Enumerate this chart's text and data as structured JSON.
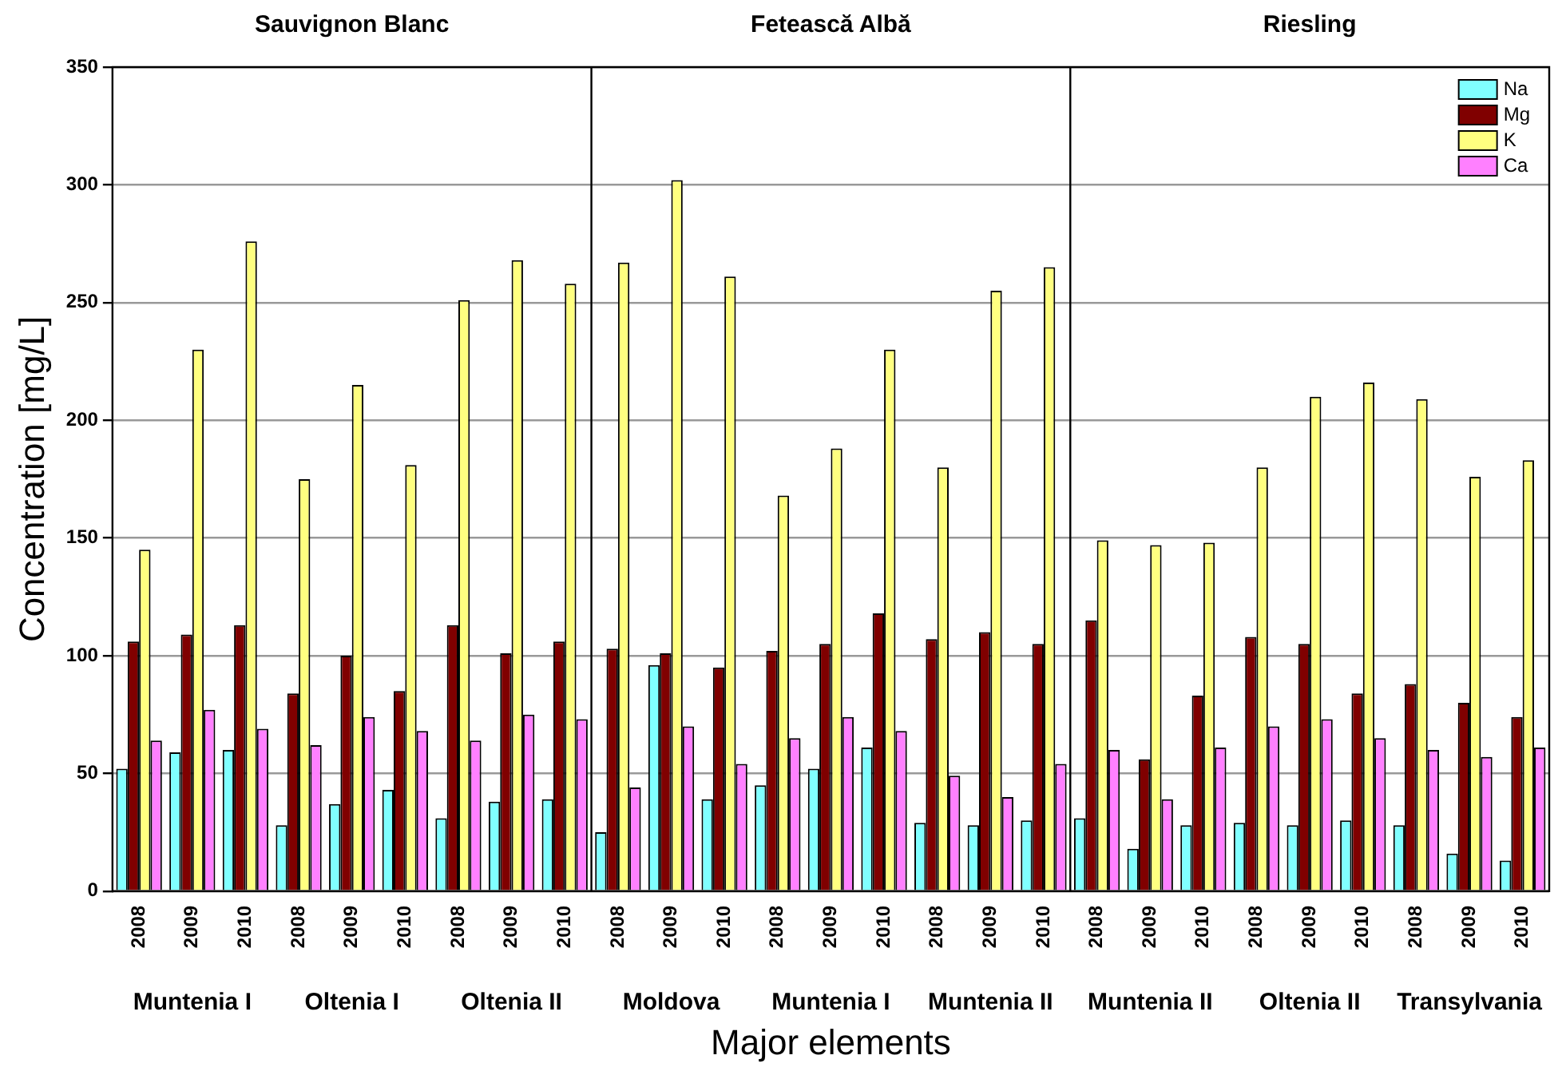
{
  "chart_data": {
    "type": "bar",
    "xlabel": "Major elements",
    "ylabel": "Concentration [mg/L]",
    "categories": [
      "2008",
      "2009",
      "2010",
      "2008",
      "2009",
      "2010",
      "2008",
      "2009",
      "2010",
      "2008",
      "2009",
      "2010",
      "2008",
      "2009",
      "2010",
      "2008",
      "2009",
      "2010",
      "2008",
      "2009",
      "2010",
      "2008",
      "2009",
      "2010",
      "2008",
      "2009",
      "2010"
    ],
    "series": [
      {
        "name": "Na",
        "color": "#80ffff",
        "values": [
          52,
          59,
          60,
          28,
          37,
          43,
          31,
          38,
          39,
          25,
          96,
          39,
          45,
          52,
          61,
          29,
          28,
          30,
          31,
          18,
          28,
          29,
          28,
          30,
          28,
          16,
          13
        ]
      },
      {
        "name": "Mg",
        "color": "#800000",
        "values": [
          106,
          109,
          113,
          84,
          100,
          85,
          113,
          101,
          106,
          103,
          101,
          95,
          102,
          105,
          118,
          107,
          110,
          105,
          115,
          56,
          83,
          108,
          105,
          84,
          88,
          80,
          74
        ]
      },
      {
        "name": "K",
        "color": "#ffff80",
        "values": [
          145,
          230,
          276,
          175,
          215,
          181,
          251,
          268,
          258,
          267,
          302,
          261,
          168,
          188,
          230,
          180,
          255,
          265,
          149,
          147,
          148,
          180,
          210,
          216,
          209,
          176,
          183
        ]
      },
      {
        "name": "Ca",
        "color": "#ff80ff",
        "values": [
          64,
          77,
          69,
          62,
          74,
          68,
          64,
          75,
          73,
          44,
          70,
          54,
          65,
          74,
          68,
          49,
          40,
          54,
          60,
          39,
          61,
          70,
          73,
          65,
          60,
          57,
          61
        ]
      }
    ],
    "ylim": [
      0,
      350
    ],
    "yticks": [
      0,
      50,
      100,
      150,
      200,
      250,
      300,
      350
    ],
    "grid": "y",
    "legend": "top right",
    "annotations": [
      "Muntenia I",
      "Oltenia I",
      "Oltenia II",
      "Moldova",
      "Muntenia I",
      "Muntenia II",
      "Muntenia II",
      "Oltenia II",
      "Transylvania",
      "Sauvignon Blanc",
      "Fetească Albă",
      "Riesling"
    ]
  }
}
